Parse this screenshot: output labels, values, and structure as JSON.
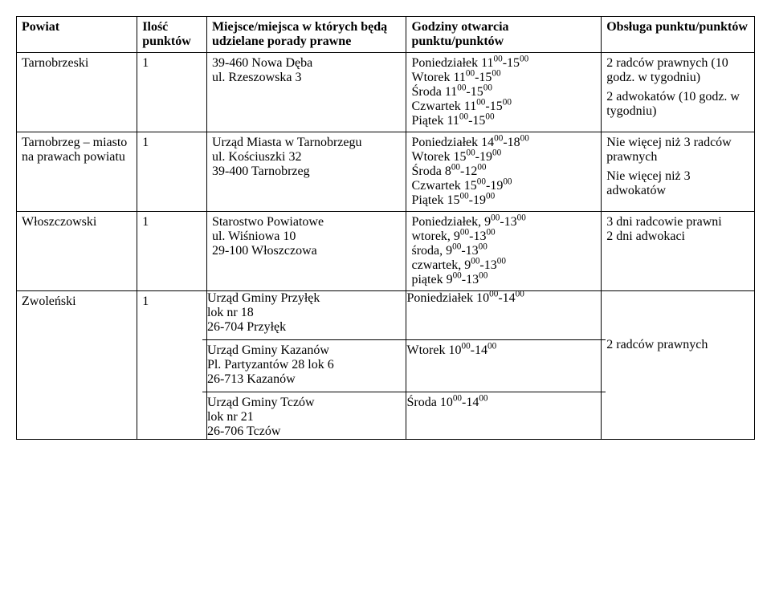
{
  "header": {
    "powiat": "Powiat",
    "ilosc": "Ilość punktów",
    "miejsce": "Miejsce/miejsca w których będą udzielane porady prawne",
    "godziny": "Godziny otwarcia punktu/punktów",
    "obsluga": "Obsługa punktu/punktów"
  },
  "rows": [
    {
      "powiat": "Tarnobrzeski",
      "ilosc": "1",
      "miejsce_l1": "39-460 Nowa Dęba",
      "miejsce_l2": "ul. Rzeszowska 3",
      "godz_l1a": "Poniedziałek 11",
      "godz_l1b": "-15",
      "godz_l2a": "Wtorek 11",
      "godz_l2b": "-15",
      "godz_l3a": "Środa 11",
      "godz_l3b": "-15",
      "godz_l4a": "Czwartek 11",
      "godz_l4b": "-15",
      "godz_l5a": "Piątek 11",
      "godz_l5b": "-15",
      "sup": "00",
      "obs_l1": "2 radców prawnych (10 godz. w tygodniu)",
      "obs_l2": "2 adwokatów (10 godz. w tygodniu)"
    },
    {
      "powiat": "Tarnobrzeg – miasto na prawach powiatu",
      "ilosc": "1",
      "miejsce_l1": "Urząd Miasta w Tarnobrzegu",
      "miejsce_l2": "ul. Kościuszki 32",
      "miejsce_l3": "39-400 Tarnobrzeg",
      "godz_l1a": "Poniedziałek 14",
      "godz_l1b": "-18",
      "godz_l2a": "Wtorek 15",
      "godz_l2b": "-19",
      "godz_l3a": "Środa 8",
      "godz_l3b": "-12",
      "godz_l4a": "Czwartek 15",
      "godz_l4b": "-19",
      "godz_l5a": "Piątek 15",
      "godz_l5b": "-19",
      "sup": "00",
      "obs_l1": "Nie więcej niż 3 radców prawnych",
      "obs_l2": "Nie więcej niż 3 adwokatów"
    },
    {
      "powiat": "Włoszczowski",
      "ilosc": "1",
      "miejsce_l1": "Starostwo Powiatowe",
      "miejsce_l2": "ul. Wiśniowa 10",
      "miejsce_l3": "29-100 Włoszczowa",
      "godz_l1a": "Poniedziałek, 9",
      "godz_l1b": "-13",
      "godz_l2a": "wtorek, 9",
      "godz_l2b": "-13",
      "godz_l3a": "środa, 9",
      "godz_l3b": "-13",
      "godz_l4a": "czwartek, 9",
      "godz_l4b": "-13",
      "godz_l5a": "piątek 9",
      "godz_l5b": "-13",
      "sup": "00",
      "obs_l1": "3 dni radcowie prawni",
      "obs_l2": "2 dni adwokaci"
    },
    {
      "powiat": "Zwoleński",
      "ilosc": "1",
      "m1_l1": "Urząd Gminy Przyłęk",
      "m1_l2": "lok nr 18",
      "m1_l3": "26-704 Przyłęk",
      "m2_l1": "Urząd Gminy Kazanów",
      "m2_l2": "Pl. Partyzantów 28 lok 6",
      "m2_l3": "26-713 Kazanów",
      "m3_l1": "Urząd Gminy Tczów",
      "m3_l2": "lok nr 21",
      "m3_l3": "26-706 Tczów",
      "g1a": "Poniedziałek 10",
      "g1b": "-14",
      "g2a": "Wtorek 10",
      "g2b": "-14",
      "g3a": "Środa 10",
      "g3b": "-14",
      "sup": "00",
      "obs": "2 radców prawnych"
    }
  ]
}
